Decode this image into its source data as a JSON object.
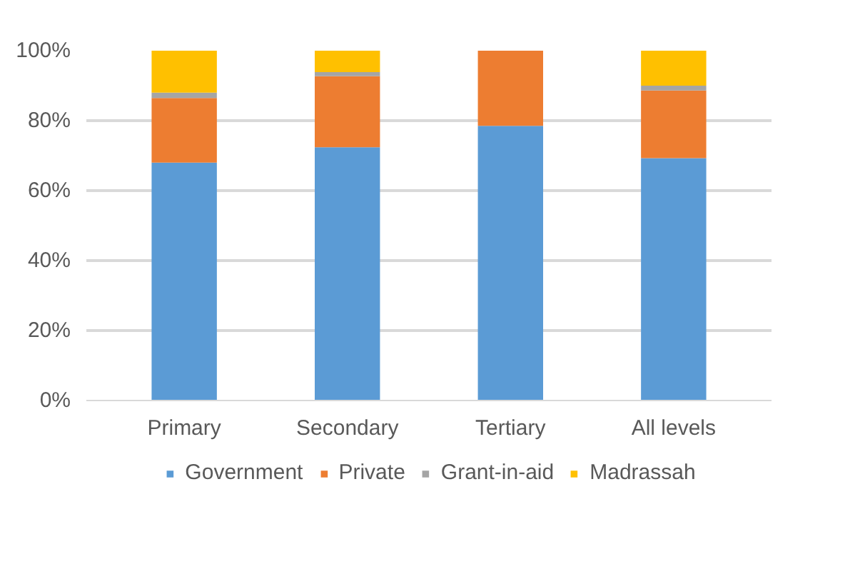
{
  "chart_data": {
    "type": "bar",
    "stacked": true,
    "categories": [
      "Primary",
      "Secondary",
      "Tertiary",
      "All levels"
    ],
    "series": [
      {
        "name": "Government",
        "color": "#5b9bd5",
        "values": [
          68,
          72.4,
          78.5,
          69.3
        ]
      },
      {
        "name": "Private",
        "color": "#ed7d31",
        "values": [
          18.5,
          20.3,
          21.5,
          19.3
        ]
      },
      {
        "name": "Grant-in-aid",
        "color": "#a5a5a5",
        "values": [
          1.5,
          1.2,
          0,
          1.4
        ]
      },
      {
        "name": "Madrassah",
        "color": "#ffc000",
        "values": [
          12,
          6.1,
          0,
          10
        ]
      }
    ],
    "ylim": [
      0,
      100
    ],
    "yticks": [
      {
        "value": 0,
        "label": "0%"
      },
      {
        "value": 20,
        "label": "20%"
      },
      {
        "value": 40,
        "label": "40%"
      },
      {
        "value": 60,
        "label": "60%"
      },
      {
        "value": 80,
        "label": "80%"
      },
      {
        "value": 100,
        "label": "100%"
      }
    ],
    "grid": "y",
    "legend": "bottom"
  }
}
